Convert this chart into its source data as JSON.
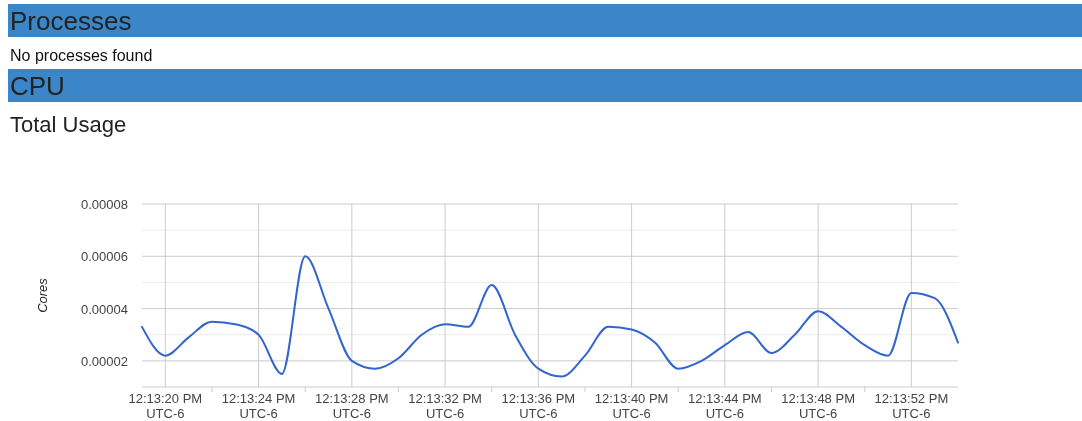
{
  "chart_data": {
    "type": "line",
    "title": "Total Usage",
    "ylabel": "Cores",
    "annotations": [
      "Processes",
      "No processes found",
      "CPU"
    ],
    "categories": [
      null,
      "12:13:20 PM\nUTC-6",
      null,
      null,
      null,
      "12:13:24 PM\nUTC-6",
      null,
      null,
      null,
      "12:13:28 PM\nUTC-6",
      null,
      null,
      null,
      "12:13:32 PM\nUTC-6",
      null,
      null,
      null,
      "12:13:36 PM\nUTC-6",
      null,
      null,
      null,
      "12:13:40 PM\nUTC-6",
      null,
      null,
      null,
      "12:13:44 PM\nUTC-6",
      null,
      null,
      null,
      "12:13:48 PM\nUTC-6",
      null,
      null,
      null,
      "12:13:52 PM\nUTC-6",
      null,
      null
    ],
    "series": [
      {
        "color": "#3366cc",
        "values": [
          3.3e-05,
          2.2e-05,
          2.9e-05,
          3.5e-05,
          3.4e-05,
          3e-05,
          1.5e-05,
          6e-05,
          4e-05,
          2e-05,
          1.7e-05,
          2.1e-05,
          3e-05,
          3.4e-05,
          3.3e-05,
          4.9e-05,
          3e-05,
          1.7e-05,
          1.4e-05,
          2.2e-05,
          3.3e-05,
          3.2e-05,
          2.7e-05,
          1.7e-05,
          2e-05,
          2.6e-05,
          3.1e-05,
          2.3e-05,
          3e-05,
          3.9e-05,
          3.3e-05,
          2.6e-05,
          2.2e-05,
          4.6e-05,
          4.4e-05,
          2.7e-05
        ]
      }
    ],
    "ylim": [
      1e-05,
      8e-05
    ],
    "yticks": [
      {
        "value": 2e-05,
        "label": "0.00002"
      },
      {
        "value": 3e-05,
        "label": null
      },
      {
        "value": 4e-05,
        "label": "0.00004"
      },
      {
        "value": 5e-05,
        "label": null
      },
      {
        "value": 6e-05,
        "label": "0.00006"
      },
      {
        "value": 7e-05,
        "label": null
      },
      {
        "value": 8e-05,
        "label": "0.00008"
      }
    ],
    "grid": true,
    "line_style": "solid"
  }
}
